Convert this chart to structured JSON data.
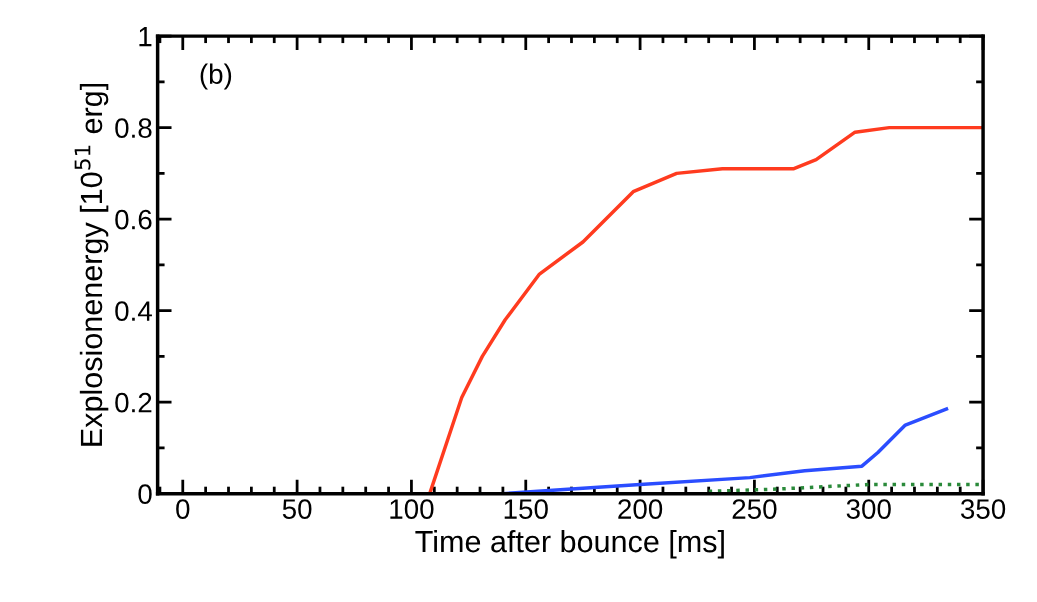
{
  "chart_data": {
    "type": "line",
    "xlabel": "Time after bounce [ms]",
    "ylabel": "Explosionenergy [10$^{51}$ erg]",
    "annotations": [
      "(b)"
    ],
    "xlim": [
      -11,
      350
    ],
    "ylim": [
      0,
      1
    ],
    "xticks": [
      0,
      50,
      100,
      150,
      200,
      250,
      300,
      350
    ],
    "yticks": [
      0,
      0.2,
      0.4,
      0.6,
      0.8,
      1
    ],
    "grid": false,
    "legend": false,
    "series": [
      {
        "color": "#ff3b1f",
        "line_style": "solid",
        "x": [
          108,
          122,
          131,
          141,
          156,
          175,
          197,
          216,
          236,
          267,
          277,
          294,
          309,
          350
        ],
        "values": [
          0,
          0.21,
          0.3,
          0.38,
          0.48,
          0.55,
          0.66,
          0.7,
          0.71,
          0.71,
          0.73,
          0.79,
          0.8,
          0.8
        ]
      },
      {
        "color": "#2b4dff",
        "line_style": "solid",
        "x": [
          140,
          170,
          200,
          248,
          272,
          297,
          304,
          316,
          334
        ],
        "values": [
          0,
          0.01,
          0.02,
          0.035,
          0.05,
          0.06,
          0.09,
          0.15,
          0.185
        ]
      },
      {
        "color": "#2a8a3a",
        "line_style": "dotted",
        "x": [
          230,
          260,
          300,
          350
        ],
        "values": [
          0.005,
          0.01,
          0.02,
          0.02
        ]
      }
    ]
  }
}
